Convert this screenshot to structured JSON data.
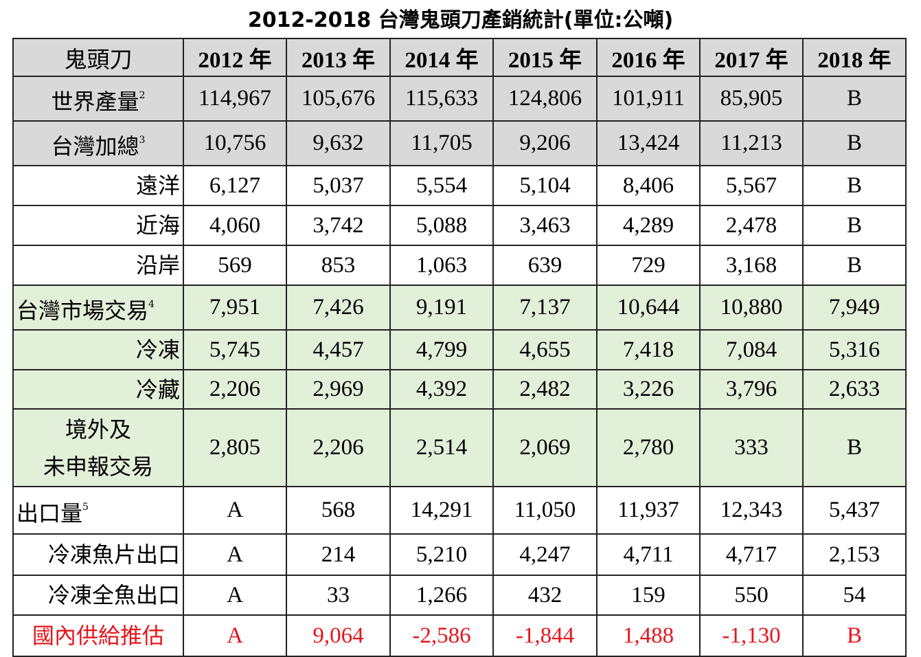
{
  "header": {
    "title": "2012-2018 台灣鬼頭刀產銷統計(單位:公噸)"
  },
  "table": {
    "columns": [
      "鬼頭刀",
      "2012 年",
      "2013 年",
      "2014 年",
      "2015 年",
      "2016 年",
      "2017 年",
      "2018 年"
    ],
    "rows": [
      {
        "label": [
          "世界產量"
        ],
        "note": "2",
        "values": [
          "114,967",
          "105,676",
          "115,633",
          "124,806",
          "101,911",
          "85,905",
          "B"
        ]
      },
      {
        "label": [
          "台灣加總"
        ],
        "note": "3",
        "values": [
          "10,756",
          "9,632",
          "11,705",
          "9,206",
          "13,424",
          "11,213",
          "B"
        ]
      },
      {
        "label": [
          "遠洋"
        ],
        "values": [
          "6,127",
          "5,037",
          "5,554",
          "5,104",
          "8,406",
          "5,567",
          "B"
        ]
      },
      {
        "label": [
          "近海"
        ],
        "values": [
          "4,060",
          "3,742",
          "5,088",
          "3,463",
          "4,289",
          "2,478",
          "B"
        ]
      },
      {
        "label": [
          "沿岸"
        ],
        "values": [
          "569",
          "853",
          "1,063",
          "639",
          "729",
          "3,168",
          "B"
        ]
      },
      {
        "label": [
          "台灣市場交易"
        ],
        "note": "4",
        "values": [
          "7,951",
          "7,426",
          "9,191",
          "7,137",
          "10,644",
          "10,880",
          "7,949"
        ]
      },
      {
        "label": [
          "冷凍"
        ],
        "values": [
          "5,745",
          "4,457",
          "4,799",
          "4,655",
          "7,418",
          "7,084",
          "5,316"
        ]
      },
      {
        "label": [
          "冷藏"
        ],
        "values": [
          "2,206",
          "2,969",
          "4,392",
          "2,482",
          "3,226",
          "3,796",
          "2,633"
        ]
      },
      {
        "label": [
          "境外及",
          "未申報交易"
        ],
        "values": [
          "2,805",
          "2,206",
          "2,514",
          "2,069",
          "2,780",
          "333",
          "B"
        ]
      },
      {
        "label": [
          "出口量"
        ],
        "note": "5",
        "values": [
          "A",
          "568",
          "14,291",
          "11,050",
          "11,937",
          "12,343",
          "5,437"
        ]
      },
      {
        "label": [
          "冷凍魚片出口"
        ],
        "values": [
          "A",
          "214",
          "5,210",
          "4,247",
          "4,711",
          "4,717",
          "2,153"
        ]
      },
      {
        "label": [
          "冷凍全魚出口"
        ],
        "values": [
          "A",
          "33",
          "1,266",
          "432",
          "159",
          "550",
          "54"
        ]
      },
      {
        "label": [
          "國內供給推估"
        ],
        "values": [
          "A",
          "9,064",
          "-2,586",
          "-1,844",
          "1,488",
          "-1,130",
          "B"
        ]
      }
    ]
  }
}
